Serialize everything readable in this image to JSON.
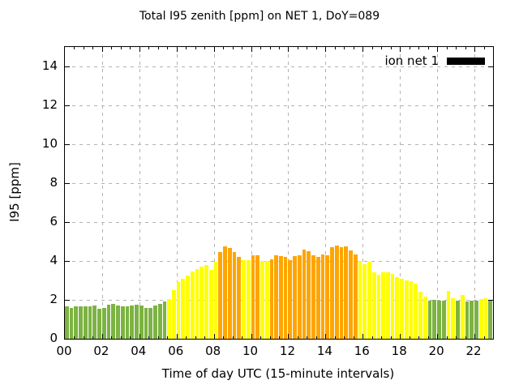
{
  "chart": {
    "title": "Total I95 zenith [ppm] on NET 1, DoY=089",
    "xlabel": "Time of day UTC (15-minute intervals)",
    "ylabel": "I95 [ppm]",
    "legend_label": "ion net 1",
    "legend_swatch_color": "#000000"
  },
  "chart_data": {
    "type": "bar",
    "title": "Total I95 zenith [ppm] on NET 1, DoY=089",
    "xlabel": "Time of day UTC (15-minute intervals)",
    "ylabel": "I95 [ppm]",
    "legend": [
      {
        "label": "ion net 1",
        "color": "#000000"
      }
    ],
    "legend_position": "top-right",
    "grid": true,
    "interval_minutes": 15,
    "xlim_hours": [
      0,
      23
    ],
    "ylim": [
      0,
      15
    ],
    "y_ticks": [
      0,
      2,
      4,
      6,
      8,
      10,
      12,
      14
    ],
    "x_tick_hours": [
      0,
      2,
      4,
      6,
      8,
      10,
      12,
      14,
      16,
      18,
      20,
      22
    ],
    "x_tick_labels": [
      "00",
      "02",
      "04",
      "06",
      "08",
      "10",
      "12",
      "14",
      "16",
      "18",
      "20",
      "22"
    ],
    "palette": {
      "g": "#7cb342",
      "y": "#ffff00",
      "o": "#ffa500"
    },
    "times": [
      "00:00",
      "00:15",
      "00:30",
      "00:45",
      "01:00",
      "01:15",
      "01:30",
      "01:45",
      "02:00",
      "02:15",
      "02:30",
      "02:45",
      "03:00",
      "03:15",
      "03:30",
      "03:45",
      "04:00",
      "04:15",
      "04:30",
      "04:45",
      "05:00",
      "05:15",
      "05:30",
      "05:45",
      "06:00",
      "06:15",
      "06:30",
      "06:45",
      "07:00",
      "07:15",
      "07:30",
      "07:45",
      "08:00",
      "08:15",
      "08:30",
      "08:45",
      "09:00",
      "09:15",
      "09:30",
      "09:45",
      "10:00",
      "10:15",
      "10:30",
      "10:45",
      "11:00",
      "11:15",
      "11:30",
      "11:45",
      "12:00",
      "12:15",
      "12:30",
      "12:45",
      "13:00",
      "13:15",
      "13:30",
      "13:45",
      "14:00",
      "14:15",
      "14:30",
      "14:45",
      "15:00",
      "15:15",
      "15:30",
      "15:45",
      "16:00",
      "16:15",
      "16:30",
      "16:45",
      "17:00",
      "17:15",
      "17:30",
      "17:45",
      "18:00",
      "18:15",
      "18:30",
      "18:45",
      "19:00",
      "19:15",
      "19:30",
      "19:45",
      "20:00",
      "20:15",
      "20:30",
      "20:45",
      "21:00",
      "21:15",
      "21:30",
      "21:45",
      "22:00",
      "22:15",
      "22:30",
      "22:45"
    ],
    "values": [
      1.65,
      1.6,
      1.65,
      1.65,
      1.65,
      1.65,
      1.7,
      1.55,
      1.6,
      1.75,
      1.8,
      1.7,
      1.65,
      1.65,
      1.7,
      1.75,
      1.7,
      1.6,
      1.6,
      1.7,
      1.8,
      1.9,
      2.05,
      2.5,
      2.9,
      3.1,
      3.25,
      3.45,
      3.6,
      3.7,
      3.8,
      3.55,
      3.95,
      4.45,
      4.75,
      4.65,
      4.45,
      4.2,
      4.05,
      4.05,
      4.3,
      4.3,
      4.0,
      4.0,
      4.1,
      4.3,
      4.25,
      4.2,
      4.05,
      4.25,
      4.3,
      4.6,
      4.5,
      4.3,
      4.2,
      4.35,
      4.3,
      4.7,
      4.8,
      4.7,
      4.75,
      4.55,
      4.35,
      4.0,
      3.85,
      3.95,
      3.4,
      3.3,
      3.4,
      3.4,
      3.35,
      3.15,
      3.1,
      3.0,
      2.95,
      2.85,
      2.4,
      2.15,
      1.95,
      2.0,
      1.95,
      1.95,
      2.45,
      2.1,
      1.95,
      2.25,
      1.9,
      1.95,
      1.95,
      2.05,
      2.1,
      2.0
    ],
    "colors": [
      "g",
      "g",
      "g",
      "g",
      "g",
      "g",
      "g",
      "g",
      "g",
      "g",
      "g",
      "g",
      "g",
      "g",
      "g",
      "g",
      "g",
      "g",
      "g",
      "g",
      "g",
      "g",
      "y",
      "y",
      "y",
      "y",
      "y",
      "y",
      "y",
      "y",
      "y",
      "y",
      "y",
      "o",
      "o",
      "o",
      "o",
      "o",
      "y",
      "y",
      "o",
      "o",
      "y",
      "y",
      "o",
      "o",
      "o",
      "o",
      "o",
      "o",
      "o",
      "o",
      "o",
      "o",
      "o",
      "o",
      "o",
      "o",
      "o",
      "o",
      "o",
      "o",
      "o",
      "y",
      "y",
      "y",
      "y",
      "y",
      "y",
      "y",
      "y",
      "y",
      "y",
      "y",
      "y",
      "y",
      "y",
      "y",
      "g",
      "g",
      "g",
      "g",
      "y",
      "y",
      "g",
      "y",
      "g",
      "g",
      "g",
      "y",
      "y",
      "g"
    ]
  }
}
